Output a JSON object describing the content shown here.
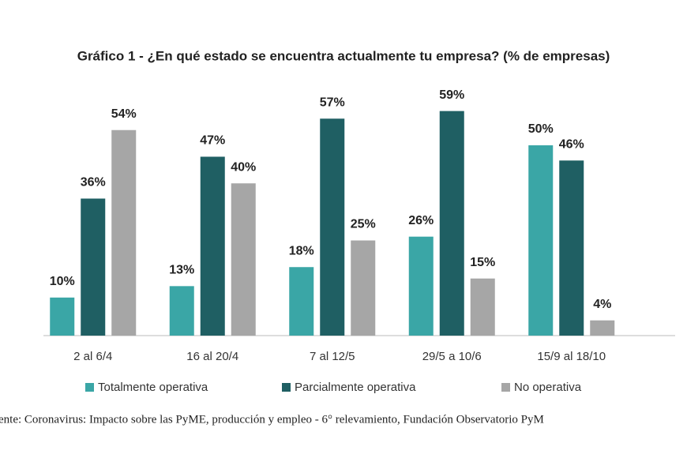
{
  "chart_data": {
    "type": "bar",
    "title": "Gráfico 1 - ¿En qué estado se encuentra actualmente tu empresa? (% de empresas)",
    "categories": [
      "2 al 6/4",
      "16 al 20/4",
      "7 al 12/5",
      "29/5 a 10/6",
      "15/9 al 18/10"
    ],
    "series": [
      {
        "name": "Totalmente operativa",
        "color": "#3aa6a6",
        "values": [
          10,
          13,
          18,
          26,
          50
        ],
        "value_labels": [
          "10%",
          "13%",
          "18%",
          "26%",
          "50%"
        ]
      },
      {
        "name": "Parcialmente operativa",
        "color": "#1f5f63",
        "values": [
          36,
          47,
          57,
          59,
          46
        ],
        "value_labels": [
          "36%",
          "47%",
          "57%",
          "59%",
          "46%"
        ]
      },
      {
        "name": "No operativa",
        "color": "#a6a6a6",
        "values": [
          54,
          40,
          25,
          15,
          4
        ],
        "value_labels": [
          "54%",
          "40%",
          "25%",
          "15%",
          "4%"
        ]
      }
    ],
    "source": "ente: Coronavirus: Impacto sobre las PyME, producción y empleo - 6° relevamiento, Fundación Observatorio PyM"
  }
}
